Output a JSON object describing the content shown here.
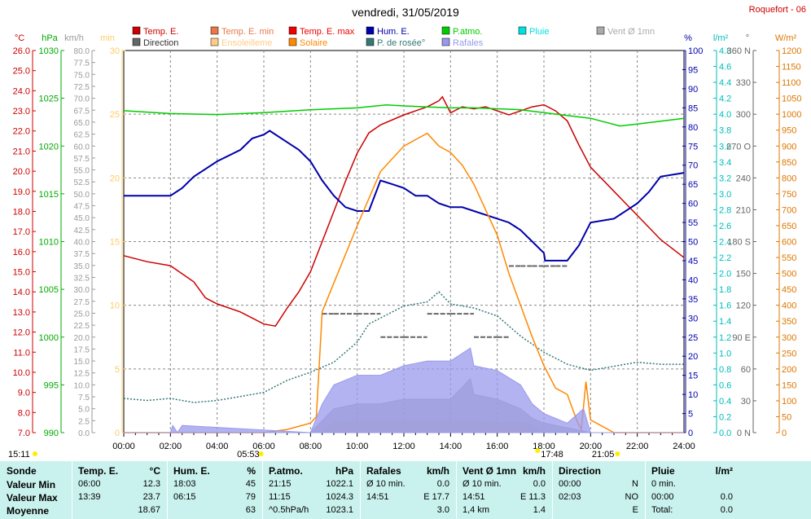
{
  "title": "vendredi, 31/05/2019",
  "station": "Roquefort - 06",
  "legend": [
    {
      "label": "Temp. E.",
      "color": "#cc0000"
    },
    {
      "label": "Temp. E. min",
      "color": "#e87848"
    },
    {
      "label": "Temp. E. max",
      "color": "#ee0000"
    },
    {
      "label": "Hum. E.",
      "color": "#0000aa"
    },
    {
      "label": "P.atmo.",
      "color": "#00cc00"
    },
    {
      "label": "Pluie",
      "color": "#00e0e0"
    },
    {
      "label": "Vent Ø 1mn",
      "color": "#aaaaaa"
    },
    {
      "label": "Direction",
      "color": "#666666"
    },
    {
      "label": "Ensoleilleme",
      "color": "#ffcc88"
    },
    {
      "label": "Solaire",
      "color": "#ff8800"
    },
    {
      "label": "P. de rosée°",
      "color": "#337777"
    },
    {
      "label": "Rafales",
      "color": "#9999ee"
    }
  ],
  "axes": {
    "temp": {
      "unit": "°C",
      "ticks": [
        "26.0",
        "25.0",
        "24.0",
        "23.0",
        "22.0",
        "21.0",
        "20.0",
        "19.0",
        "18.0",
        "17.0",
        "16.0",
        "15.0",
        "14.0",
        "13.0",
        "12.0",
        "11.0",
        "10.0",
        "9.0",
        "8.0",
        "7.0"
      ],
      "color": "#cc0000"
    },
    "press": {
      "unit": "hPa",
      "ticks": [
        "1030",
        "1025",
        "1020",
        "1015",
        "1010",
        "1005",
        "1000",
        "995",
        "990"
      ],
      "color": "#00aa00"
    },
    "wind": {
      "unit": "km/h",
      "ticks": [
        "80.0",
        "77.5",
        "75.0",
        "72.5",
        "70.0",
        "67.5",
        "65.0",
        "62.5",
        "60.0",
        "57.5",
        "55.0",
        "52.5",
        "50.0",
        "47.5",
        "45.0",
        "42.5",
        "40.0",
        "37.5",
        "35.0",
        "32.5",
        "30.0",
        "27.5",
        "25.0",
        "22.5",
        "20.0",
        "17.5",
        "15.0",
        "12.5",
        "10.0",
        "7.5",
        "5.0",
        "2.5",
        "0.0"
      ],
      "color": "#999999"
    },
    "sunmin": {
      "unit": "min",
      "ticks": [
        "30",
        "25",
        "20",
        "15",
        "10",
        "5",
        "0"
      ],
      "color": "#ffcc66"
    },
    "hum": {
      "unit": "%",
      "ticks": [
        "100",
        "95",
        "90",
        "85",
        "80",
        "75",
        "70",
        "65",
        "60",
        "55",
        "50",
        "45",
        "40",
        "35",
        "30",
        "25",
        "20",
        "15",
        "10",
        "5",
        "0"
      ],
      "color": "#0000aa"
    },
    "rain": {
      "unit": "l/m²",
      "ticks": [
        "4.8",
        "4.6",
        "4.4",
        "4.2",
        "4.0",
        "3.8",
        "3.6",
        "3.4",
        "3.2",
        "3.0",
        "2.8",
        "2.6",
        "2.4",
        "2.2",
        "2.0",
        "1.8",
        "1.6",
        "1.4",
        "1.2",
        "1.0",
        "0.8",
        "0.6",
        "0.4",
        "0.2",
        "0.0"
      ],
      "color": "#00bbbb"
    },
    "dir": {
      "unit": "°",
      "ticks": [
        "360 N",
        "330",
        "300",
        "270 O",
        "240",
        "210",
        "180 S",
        "150",
        "120",
        "90 E",
        "60",
        "30",
        "0 N"
      ],
      "color": "#666666"
    },
    "solar": {
      "unit": "W/m²",
      "ticks": [
        "1200",
        "1150",
        "1100",
        "1050",
        "1000",
        "950",
        "900",
        "850",
        "800",
        "750",
        "700",
        "650",
        "600",
        "550",
        "500",
        "450",
        "400",
        "350",
        "300",
        "250",
        "200",
        "150",
        "100",
        "50",
        "0"
      ],
      "color": "#dd7700"
    },
    "time": {
      "ticks": [
        "00:00",
        "02:00",
        "04:00",
        "06:00",
        "08:00",
        "10:00",
        "12:00",
        "14:00",
        "16:00",
        "18:00",
        "20:00",
        "22:00",
        "24:00"
      ]
    }
  },
  "markers": {
    "sunrise_label": "15:11",
    "dawn": "05:53",
    "sunset": "17:48",
    "dusk": "21:05"
  },
  "chart_data": {
    "type": "line",
    "title": "vendredi, 31/05/2019",
    "x_unit": "hour",
    "xlim": [
      0,
      24
    ],
    "series": [
      {
        "name": "Temp. E.",
        "axis": "temp",
        "ylim": [
          7,
          26
        ],
        "color": "#cc0000",
        "x": [
          0,
          1,
          2,
          3,
          3.5,
          4,
          5,
          6,
          6.5,
          7,
          7.5,
          8,
          8.5,
          9,
          9.5,
          10,
          10.5,
          11,
          12,
          12.5,
          13,
          13.5,
          13.65,
          14,
          14.5,
          15,
          15.5,
          16,
          16.5,
          17,
          17.5,
          18,
          18.5,
          19,
          19.5,
          20,
          21,
          22,
          23,
          24
        ],
        "y": [
          15.8,
          15.5,
          15.3,
          14.5,
          13.7,
          13.4,
          13.0,
          12.4,
          12.3,
          13.2,
          14.0,
          15.0,
          16.5,
          18.0,
          19.5,
          20.9,
          21.9,
          22.3,
          22.8,
          23.0,
          23.2,
          23.5,
          23.7,
          22.9,
          23.2,
          23.1,
          23.2,
          23.0,
          22.8,
          23.0,
          23.2,
          23.3,
          23.0,
          22.5,
          21.3,
          20.2,
          19.0,
          17.8,
          16.6,
          15.7
        ]
      },
      {
        "name": "Hum. E.",
        "axis": "hum",
        "ylim": [
          0,
          100
        ],
        "color": "#0000aa",
        "x": [
          0,
          1,
          2,
          2.5,
          3,
          4,
          5,
          5.5,
          6,
          6.25,
          7,
          7.5,
          8,
          8.5,
          9,
          9.5,
          10,
          10.5,
          11,
          11.5,
          12,
          12.5,
          13,
          13.5,
          14,
          14.5,
          15,
          15.5,
          16,
          16.5,
          17,
          17.5,
          18,
          18.05,
          18.5,
          19,
          19.5,
          20,
          21,
          22,
          22.5,
          23,
          24
        ],
        "y": [
          62,
          62,
          62,
          64,
          67,
          71,
          74,
          77,
          78,
          79,
          76,
          74,
          71,
          66,
          62,
          59,
          58,
          58,
          66,
          65,
          64,
          62,
          62,
          60,
          59,
          59,
          58,
          57,
          56,
          55,
          53,
          50,
          47,
          45,
          45,
          45,
          49,
          55,
          56,
          60,
          63,
          67,
          68
        ]
      },
      {
        "name": "P.atmo.",
        "axis": "press",
        "ylim": [
          990,
          1030
        ],
        "color": "#00cc00",
        "x": [
          0,
          2,
          4,
          6,
          8,
          10,
          11.25,
          12,
          13,
          14,
          15,
          16,
          17,
          18,
          19,
          20,
          21.25,
          22,
          23,
          24
        ],
        "y": [
          1023.7,
          1023.4,
          1023.3,
          1023.5,
          1023.8,
          1024.0,
          1024.3,
          1024.2,
          1024.1,
          1024.0,
          1024.0,
          1023.9,
          1023.8,
          1023.5,
          1023.2,
          1022.9,
          1022.1,
          1022.3,
          1022.6,
          1022.9
        ]
      },
      {
        "name": "P. de rosée°",
        "axis": "temp",
        "ylim": [
          7,
          26
        ],
        "color": "#337777",
        "x": [
          0,
          1,
          2,
          3,
          4,
          5,
          6,
          7,
          8,
          9,
          10,
          10.5,
          11,
          12,
          13,
          13.5,
          14,
          15,
          16,
          17,
          18,
          19,
          20,
          21,
          22,
          23,
          24
        ],
        "y": [
          8.7,
          8.6,
          8.7,
          8.5,
          8.6,
          8.8,
          9.0,
          9.6,
          10.0,
          10.5,
          11.5,
          12.4,
          12.7,
          13.3,
          13.5,
          14.0,
          13.4,
          13.2,
          12.8,
          11.8,
          11.0,
          10.4,
          10.1,
          10.3,
          10.5,
          10.4,
          10.4
        ]
      },
      {
        "name": "Solaire",
        "axis": "solar",
        "ylim": [
          0,
          1200
        ],
        "color": "#ff8800",
        "x": [
          0,
          6,
          7,
          8,
          8.25,
          8.5,
          9,
          10,
          11,
          12,
          12.5,
          13,
          13.5,
          14,
          14.5,
          15,
          16,
          16.5,
          17,
          17.5,
          18,
          18.5,
          19,
          19.4,
          19.6,
          19.8,
          20,
          21,
          21.08,
          24
        ],
        "y": [
          0,
          0,
          10,
          30,
          50,
          380,
          470,
          650,
          820,
          900,
          920,
          940,
          900,
          880,
          840,
          780,
          620,
          500,
          400,
          300,
          210,
          140,
          120,
          40,
          10,
          160,
          40,
          0,
          0,
          0
        ]
      },
      {
        "name": "Ensoleilleme",
        "axis": "sunmin",
        "ylim": [
          0,
          30
        ],
        "color": "#ffcc88",
        "x": [
          0,
          8.5,
          9,
          10,
          11,
          12,
          13,
          14,
          15,
          16,
          17,
          17.5,
          17.8,
          24
        ],
        "y": [
          0,
          0,
          0.8,
          0.9,
          0.9,
          0.9,
          0.9,
          0.9,
          0.9,
          0.8,
          0.8,
          0.6,
          0,
          0
        ]
      },
      {
        "name": "Vent Ø 1mn",
        "axis": "wind",
        "ylim": [
          0,
          80
        ],
        "color": "#aaaaaa",
        "x": [
          0,
          8,
          8.5,
          9,
          10,
          11,
          12,
          13,
          14,
          14.85,
          15,
          16,
          17,
          17.5,
          18,
          19,
          20,
          24
        ],
        "y": [
          0,
          0,
          2.5,
          5,
          6,
          6,
          7,
          7,
          7,
          11.3,
          8,
          7,
          5,
          3,
          2,
          1,
          0,
          0
        ]
      },
      {
        "name": "Rafales",
        "axis": "wind",
        "ylim": [
          0,
          80
        ],
        "color": "#9999ee",
        "x": [
          0,
          2,
          2.1,
          2.3,
          2.5,
          8,
          8.5,
          9,
          10,
          11,
          12,
          13,
          14,
          14.85,
          15,
          16,
          17,
          17.5,
          18,
          19,
          19.7,
          20,
          24
        ],
        "y": [
          0,
          0,
          1.5,
          0,
          1.5,
          0,
          6,
          10,
          12,
          12,
          14,
          15,
          15,
          17.7,
          14,
          13,
          10,
          6,
          4,
          2,
          5,
          0,
          0
        ]
      },
      {
        "name": "Direction",
        "axis": "dir",
        "ylim": [
          0,
          360
        ],
        "color": "#666666",
        "x": [
          8.5,
          9,
          10,
          11,
          12,
          13,
          14,
          15,
          16,
          16.5,
          17,
          17.5,
          18,
          18.5,
          19
        ],
        "y": [
          112,
          112,
          112,
          90,
          90,
          112,
          112,
          90,
          90,
          157,
          157,
          157,
          157,
          157,
          157
        ]
      }
    ]
  },
  "stats": {
    "columns": [
      {
        "header": "Sonde",
        "unit": "",
        "rows": [
          [
            "Valeur Min"
          ],
          [
            "Valeur Max"
          ],
          [
            "Moyenne"
          ]
        ]
      },
      {
        "header": "Temp. E.",
        "unit": "°C",
        "rows": [
          [
            "06:00",
            "12.3"
          ],
          [
            "13:39",
            "23.7"
          ],
          [
            "",
            "18.67"
          ]
        ]
      },
      {
        "header": "Hum. E.",
        "unit": "%",
        "rows": [
          [
            "18:03",
            "45"
          ],
          [
            "06:15",
            "79"
          ],
          [
            "",
            "63"
          ]
        ]
      },
      {
        "header": "P.atmo.",
        "unit": "hPa",
        "rows": [
          [
            "21:15",
            "1022.1"
          ],
          [
            "11:15",
            "1024.3"
          ],
          [
            "^0.5hPa/h",
            "1023.1"
          ]
        ]
      },
      {
        "header": "Rafales",
        "unit": "km/h",
        "rows": [
          [
            "Ø 10 min.",
            "0.0"
          ],
          [
            "14:51",
            "E 17.7"
          ],
          [
            "",
            "3.0"
          ]
        ]
      },
      {
        "header": "Vent Ø 1mn",
        "unit": "km/h",
        "rows": [
          [
            "Ø 10 min.",
            "0.0"
          ],
          [
            "14:51",
            "E 11.3"
          ],
          [
            "1,4 km",
            "1.4"
          ]
        ]
      },
      {
        "header": "Direction",
        "unit": "",
        "rows": [
          [
            "00:00",
            "N"
          ],
          [
            "02:03",
            "NO"
          ],
          [
            "",
            "E"
          ]
        ]
      },
      {
        "header": "Pluie",
        "unit": "l/m²",
        "rows": [
          [
            "0 min.",
            ""
          ],
          [
            "00:00",
            "0.0"
          ],
          [
            "Total:",
            "0.0"
          ]
        ]
      }
    ]
  }
}
